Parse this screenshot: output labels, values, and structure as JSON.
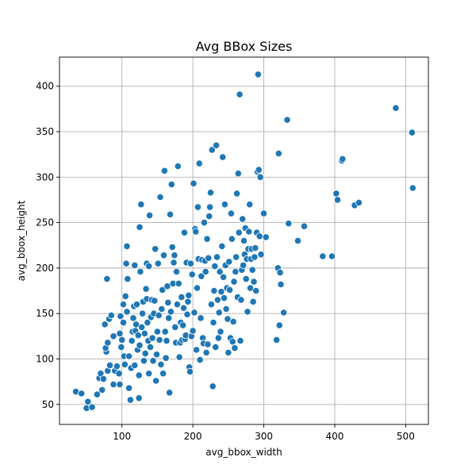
{
  "chart_data": {
    "type": "scatter",
    "title": "Avg BBox Sizes",
    "xlabel": "avg_bbox_width",
    "ylabel": "avg_bbox_height",
    "xlim": [
      12,
      532
    ],
    "ylim": [
      28,
      432
    ],
    "xticks": [
      100,
      200,
      300,
      400,
      500
    ],
    "yticks": [
      50,
      100,
      150,
      200,
      250,
      300,
      350,
      400
    ],
    "grid": true,
    "legend": "none",
    "point_color": "#1f77b4",
    "points": [
      [
        35,
        64
      ],
      [
        43,
        62
      ],
      [
        50,
        46
      ],
      [
        52,
        53
      ],
      [
        58,
        47
      ],
      [
        65,
        61
      ],
      [
        68,
        79
      ],
      [
        70,
        84
      ],
      [
        74,
        78
      ],
      [
        72,
        66
      ],
      [
        80,
        87
      ],
      [
        83,
        93
      ],
      [
        78,
        108
      ],
      [
        77,
        112
      ],
      [
        76,
        138
      ],
      [
        82,
        144
      ],
      [
        85,
        148
      ],
      [
        80,
        118
      ],
      [
        79,
        188
      ],
      [
        88,
        125
      ],
      [
        88,
        72
      ],
      [
        90,
        87
      ],
      [
        93,
        92
      ],
      [
        96,
        84
      ],
      [
        97,
        72
      ],
      [
        99,
        113
      ],
      [
        97,
        128
      ],
      [
        100,
        121
      ],
      [
        98,
        147
      ],
      [
        102,
        160
      ],
      [
        104,
        94
      ],
      [
        103,
        103
      ],
      [
        102,
        140
      ],
      [
        105,
        169
      ],
      [
        107,
        152
      ],
      [
        106,
        205
      ],
      [
        107,
        224
      ],
      [
        108,
        188
      ],
      [
        110,
        103
      ],
      [
        110,
        68
      ],
      [
        112,
        55
      ],
      [
        113,
        90
      ],
      [
        114,
        120
      ],
      [
        115,
        130
      ],
      [
        116,
        145
      ],
      [
        117,
        158
      ],
      [
        118,
        93
      ],
      [
        119,
        131
      ],
      [
        118,
        203
      ],
      [
        120,
        138
      ],
      [
        121,
        160
      ],
      [
        122,
        110
      ],
      [
        123,
        126
      ],
      [
        124,
        57
      ],
      [
        124,
        82
      ],
      [
        125,
        115
      ],
      [
        126,
        196
      ],
      [
        125,
        245
      ],
      [
        127,
        270
      ],
      [
        128,
        135
      ],
      [
        129,
        150
      ],
      [
        130,
        163
      ],
      [
        131,
        98
      ],
      [
        132,
        128
      ],
      [
        133,
        106
      ],
      [
        134,
        177
      ],
      [
        135,
        166
      ],
      [
        135,
        205
      ],
      [
        136,
        140
      ],
      [
        137,
        120
      ],
      [
        138,
        84
      ],
      [
        138,
        202
      ],
      [
        139,
        258
      ],
      [
        140,
        113
      ],
      [
        141,
        146
      ],
      [
        142,
        165
      ],
      [
        143,
        123
      ],
      [
        144,
        98
      ],
      [
        145,
        150
      ],
      [
        146,
        164
      ],
      [
        147,
        221
      ],
      [
        148,
        76
      ],
      [
        149,
        105
      ],
      [
        150,
        130
      ],
      [
        151,
        205
      ],
      [
        152,
        148
      ],
      [
        153,
        121
      ],
      [
        154,
        278
      ],
      [
        155,
        94
      ],
      [
        156,
        155
      ],
      [
        157,
        176
      ],
      [
        158,
        84
      ],
      [
        159,
        214
      ],
      [
        160,
        307
      ],
      [
        161,
        130
      ],
      [
        162,
        101
      ],
      [
        163,
        120
      ],
      [
        164,
        180
      ],
      [
        165,
        162
      ],
      [
        166,
        145
      ],
      [
        167,
        63
      ],
      [
        168,
        259
      ],
      [
        169,
        152
      ],
      [
        170,
        292
      ],
      [
        171,
        223
      ],
      [
        172,
        183
      ],
      [
        173,
        206
      ],
      [
        174,
        214
      ],
      [
        175,
        135
      ],
      [
        176,
        118
      ],
      [
        177,
        196
      ],
      [
        178,
        160
      ],
      [
        179,
        312
      ],
      [
        180,
        183
      ],
      [
        181,
        102
      ],
      [
        182,
        118
      ],
      [
        183,
        140
      ],
      [
        184,
        168
      ],
      [
        185,
        121
      ],
      [
        186,
        137
      ],
      [
        187,
        156
      ],
      [
        188,
        239
      ],
      [
        189,
        122
      ],
      [
        190,
        126
      ],
      [
        191,
        206
      ],
      [
        192,
        149
      ],
      [
        193,
        163
      ],
      [
        194,
        170
      ],
      [
        195,
        91
      ],
      [
        196,
        86
      ],
      [
        197,
        205
      ],
      [
        198,
        125
      ],
      [
        199,
        193
      ],
      [
        200,
        131
      ],
      [
        201,
        293
      ],
      [
        202,
        151
      ],
      [
        203,
        243
      ],
      [
        204,
        240
      ],
      [
        205,
        110
      ],
      [
        206,
        178
      ],
      [
        207,
        267
      ],
      [
        208,
        210
      ],
      [
        209,
        315
      ],
      [
        210,
        99
      ],
      [
        211,
        145
      ],
      [
        212,
        191
      ],
      [
        213,
        209
      ],
      [
        214,
        123
      ],
      [
        215,
        117
      ],
      [
        216,
        250
      ],
      [
        217,
        208
      ],
      [
        218,
        196
      ],
      [
        219,
        107
      ],
      [
        220,
        232
      ],
      [
        221,
        116
      ],
      [
        222,
        211
      ],
      [
        223,
        257
      ],
      [
        224,
        267
      ],
      [
        225,
        283
      ],
      [
        226,
        160
      ],
      [
        227,
        330
      ],
      [
        228,
        70
      ],
      [
        229,
        140
      ],
      [
        230,
        175
      ],
      [
        231,
        202
      ],
      [
        232,
        113
      ],
      [
        233,
        335
      ],
      [
        234,
        212
      ],
      [
        235,
        165
      ],
      [
        236,
        123
      ],
      [
        237,
        151
      ],
      [
        238,
        196
      ],
      [
        239,
        130
      ],
      [
        240,
        174
      ],
      [
        241,
        224
      ],
      [
        242,
        322
      ],
      [
        243,
        190
      ],
      [
        244,
        167
      ],
      [
        245,
        270
      ],
      [
        246,
        203
      ],
      [
        247,
        155
      ],
      [
        248,
        178
      ],
      [
        249,
        144
      ],
      [
        250,
        107
      ],
      [
        251,
        207
      ],
      [
        252,
        176
      ],
      [
        253,
        123
      ],
      [
        254,
        260
      ],
      [
        255,
        232
      ],
      [
        256,
        119
      ],
      [
        257,
        141
      ],
      [
        258,
        185
      ],
      [
        259,
        112
      ],
      [
        260,
        196
      ],
      [
        261,
        212
      ],
      [
        262,
        282
      ],
      [
        263,
        168
      ],
      [
        264,
        304
      ],
      [
        265,
        239
      ],
      [
        266,
        391
      ],
      [
        267,
        120
      ],
      [
        268,
        165
      ],
      [
        269,
        198
      ],
      [
        270,
        254
      ],
      [
        271,
        203
      ],
      [
        272,
        230
      ],
      [
        273,
        215
      ],
      [
        274,
        244
      ],
      [
        275,
        188
      ],
      [
        276,
        210
      ],
      [
        277,
        152
      ],
      [
        278,
        221
      ],
      [
        279,
        240
      ],
      [
        280,
        270
      ],
      [
        281,
        178
      ],
      [
        282,
        210
      ],
      [
        283,
        221
      ],
      [
        284,
        198
      ],
      [
        285,
        163
      ],
      [
        286,
        185
      ],
      [
        287,
        212
      ],
      [
        288,
        222
      ],
      [
        289,
        175
      ],
      [
        290,
        239
      ],
      [
        291,
        306
      ],
      [
        292,
        413
      ],
      [
        293,
        308
      ],
      [
        294,
        235
      ],
      [
        295,
        300
      ],
      [
        296,
        215
      ],
      [
        300,
        260
      ],
      [
        303,
        234
      ],
      [
        318,
        121
      ],
      [
        320,
        200
      ],
      [
        321,
        326
      ],
      [
        322,
        137
      ],
      [
        323,
        195
      ],
      [
        324,
        182
      ],
      [
        328,
        151
      ],
      [
        333,
        363
      ],
      [
        335,
        249
      ],
      [
        348,
        230
      ],
      [
        357,
        246
      ],
      [
        383,
        213
      ],
      [
        396,
        213
      ],
      [
        402,
        282
      ],
      [
        404,
        275
      ],
      [
        410,
        318
      ],
      [
        411,
        320
      ],
      [
        428,
        269
      ],
      [
        434,
        272
      ],
      [
        486,
        376
      ],
      [
        509,
        349
      ],
      [
        510,
        288
      ]
    ]
  }
}
